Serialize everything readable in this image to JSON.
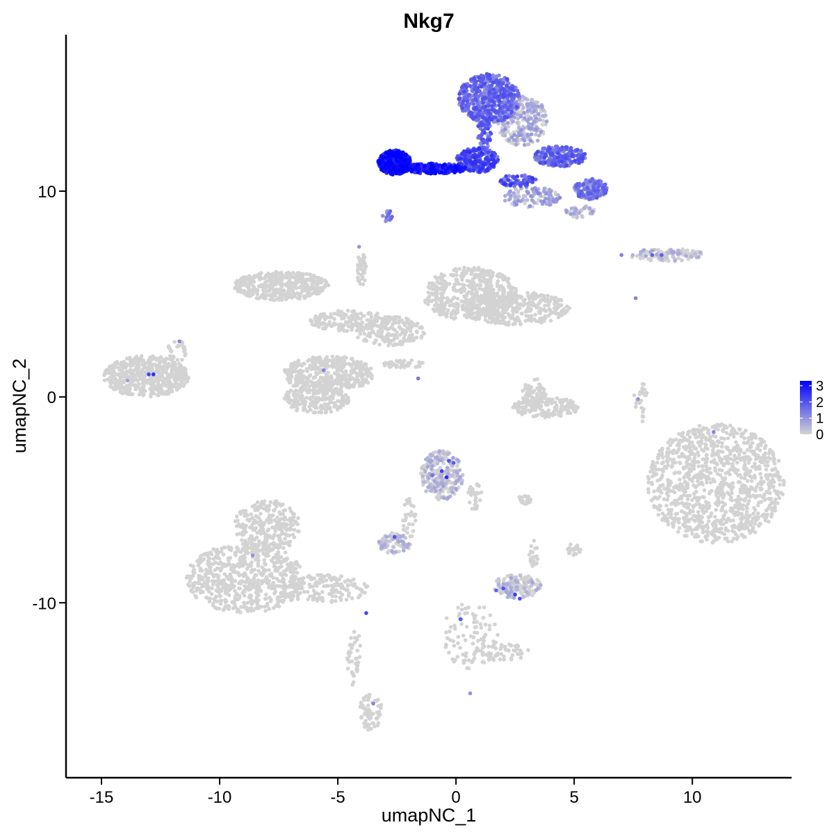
{
  "chart_data": {
    "type": "scatter",
    "title": "Nkg7",
    "xlabel": "umapNC_1",
    "ylabel": "umapNC_2",
    "xlim": [
      -16.5,
      14.2
    ],
    "ylim": [
      -18.5,
      17.6
    ],
    "xticks": [
      -15,
      -10,
      -5,
      0,
      5,
      10
    ],
    "xtick_labels": [
      "-15",
      "-10",
      "-5",
      "0",
      "5",
      "10"
    ],
    "yticks": [
      -10,
      0,
      10
    ],
    "ytick_labels": [
      "-10",
      "0",
      "10"
    ],
    "grid": false,
    "legend": {
      "placement": "right",
      "title": "",
      "ticks": [
        0,
        1,
        2,
        3
      ],
      "tick_labels": [
        "0",
        "1",
        "2",
        "3"
      ],
      "range": [
        0,
        3.3
      ],
      "color_low": "#d3d3d3",
      "color_high": "#0000ff"
    },
    "point_colors": {
      "low": "#d3d3d3",
      "high": "#0000ff"
    },
    "clusters": [
      {
        "cx": -13.1,
        "cy": 1.0,
        "rx": 1.8,
        "ry": 1.0,
        "n": 520,
        "expr": 0.0
      },
      {
        "cx": -11.8,
        "cy": 2.2,
        "rx": 0.4,
        "ry": 0.6,
        "n": 30,
        "expr": 0.0
      },
      {
        "cx": -7.4,
        "cy": 5.4,
        "rx": 2.0,
        "ry": 0.7,
        "n": 420,
        "expr": 0.0
      },
      {
        "cx": -5.4,
        "cy": 1.1,
        "rx": 1.9,
        "ry": 0.9,
        "n": 420,
        "expr": 0.0
      },
      {
        "cx": -5.9,
        "cy": -0.1,
        "rx": 1.4,
        "ry": 0.7,
        "n": 220,
        "expr": 0.0
      },
      {
        "cx": -4.5,
        "cy": 3.7,
        "rx": 1.7,
        "ry": 0.5,
        "n": 180,
        "expr": 0.0
      },
      {
        "cx": -2.8,
        "cy": 3.2,
        "rx": 1.5,
        "ry": 0.7,
        "n": 160,
        "expr": 0.0
      },
      {
        "cx": -4.0,
        "cy": 6.2,
        "rx": 0.2,
        "ry": 0.8,
        "n": 40,
        "expr": 0.0
      },
      {
        "cx": -2.2,
        "cy": 1.6,
        "rx": 0.9,
        "ry": 0.2,
        "n": 40,
        "expr": 0.0
      },
      {
        "cx": 0.6,
        "cy": 5.0,
        "rx": 2.0,
        "ry": 1.3,
        "n": 480,
        "expr": 0.0
      },
      {
        "cx": 2.5,
        "cy": 4.3,
        "rx": 2.3,
        "ry": 0.8,
        "n": 360,
        "expr": 0.0
      },
      {
        "cx": 3.3,
        "cy": 0.2,
        "rx": 0.5,
        "ry": 0.7,
        "n": 60,
        "expr": 0.0
      },
      {
        "cx": 3.8,
        "cy": -0.5,
        "rx": 1.4,
        "ry": 0.5,
        "n": 170,
        "expr": 0.0
      },
      {
        "cx": -0.6,
        "cy": -3.8,
        "rx": 0.9,
        "ry": 1.2,
        "n": 260,
        "expr": 0.05
      },
      {
        "cx": 0.8,
        "cy": -4.8,
        "rx": 0.3,
        "ry": 0.7,
        "n": 30,
        "expr": 0.0
      },
      {
        "cx": -2.0,
        "cy": -5.9,
        "rx": 0.3,
        "ry": 1.0,
        "n": 30,
        "expr": 0.0
      },
      {
        "cx": -2.6,
        "cy": -7.1,
        "rx": 0.7,
        "ry": 0.5,
        "n": 90,
        "expr": 0.03
      },
      {
        "cx": 2.6,
        "cy": -9.2,
        "rx": 1.0,
        "ry": 0.6,
        "n": 150,
        "expr": 0.05
      },
      {
        "cx": 3.3,
        "cy": -7.6,
        "rx": 0.2,
        "ry": 0.7,
        "n": 25,
        "expr": 0.0
      },
      {
        "cx": 0.6,
        "cy": -11.6,
        "rx": 1.2,
        "ry": 1.6,
        "n": 90,
        "expr": 0.0
      },
      {
        "cx": 1.9,
        "cy": -12.4,
        "rx": 1.3,
        "ry": 0.4,
        "n": 60,
        "expr": 0.0
      },
      {
        "cx": 5.0,
        "cy": -7.4,
        "rx": 0.3,
        "ry": 0.3,
        "n": 25,
        "expr": 0.0
      },
      {
        "cx": 2.9,
        "cy": -5.0,
        "rx": 0.3,
        "ry": 0.2,
        "n": 20,
        "expr": 0.0
      },
      {
        "cx": -8.9,
        "cy": -8.8,
        "rx": 2.5,
        "ry": 1.7,
        "n": 620,
        "expr": 0.0
      },
      {
        "cx": -8.0,
        "cy": -6.3,
        "rx": 1.4,
        "ry": 1.3,
        "n": 280,
        "expr": 0.0
      },
      {
        "cx": -5.5,
        "cy": -9.3,
        "rx": 1.8,
        "ry": 0.7,
        "n": 160,
        "expr": 0.0
      },
      {
        "cx": -4.3,
        "cy": -12.6,
        "rx": 0.3,
        "ry": 1.5,
        "n": 40,
        "expr": 0.0
      },
      {
        "cx": -3.6,
        "cy": -15.3,
        "rx": 0.5,
        "ry": 0.9,
        "n": 70,
        "expr": 0.0
      },
      {
        "cx": 11.0,
        "cy": -4.2,
        "rx": 2.9,
        "ry": 2.9,
        "n": 1100,
        "expr": 0.0
      },
      {
        "cx": 8.9,
        "cy": 6.9,
        "rx": 1.6,
        "ry": 0.3,
        "n": 110,
        "expr": 0.02
      },
      {
        "cx": 7.8,
        "cy": -0.2,
        "rx": 0.3,
        "ry": 1.2,
        "n": 25,
        "expr": 0.0
      },
      {
        "cx": 1.4,
        "cy": 14.5,
        "rx": 1.3,
        "ry": 1.2,
        "n": 550,
        "expr": 1.4
      },
      {
        "cx": 2.8,
        "cy": 13.4,
        "rx": 1.1,
        "ry": 1.2,
        "n": 260,
        "expr": 0.3
      },
      {
        "cx": -2.6,
        "cy": 11.4,
        "rx": 0.7,
        "ry": 0.6,
        "n": 380,
        "expr": 2.8
      },
      {
        "cx": -0.9,
        "cy": 11.1,
        "rx": 1.4,
        "ry": 0.25,
        "n": 260,
        "expr": 2.6
      },
      {
        "cx": 0.9,
        "cy": 11.5,
        "rx": 0.9,
        "ry": 0.6,
        "n": 240,
        "expr": 1.9
      },
      {
        "cx": 1.2,
        "cy": 12.8,
        "rx": 0.3,
        "ry": 0.8,
        "n": 60,
        "expr": 1.5
      },
      {
        "cx": 4.4,
        "cy": 11.7,
        "rx": 1.1,
        "ry": 0.5,
        "n": 240,
        "expr": 1.5
      },
      {
        "cx": 5.7,
        "cy": 10.1,
        "rx": 0.7,
        "ry": 0.5,
        "n": 170,
        "expr": 1.2
      },
      {
        "cx": 3.2,
        "cy": 9.7,
        "rx": 1.2,
        "ry": 0.5,
        "n": 110,
        "expr": 0.5
      },
      {
        "cx": 2.6,
        "cy": 10.5,
        "rx": 0.8,
        "ry": 0.3,
        "n": 60,
        "expr": 1.8
      },
      {
        "cx": -2.9,
        "cy": 8.8,
        "rx": 0.2,
        "ry": 0.3,
        "n": 15,
        "expr": 1.0
      },
      {
        "cx": 5.2,
        "cy": 9.0,
        "rx": 0.7,
        "ry": 0.3,
        "n": 40,
        "expr": 0.2
      }
    ],
    "highlighted_points": [
      {
        "x": -12.8,
        "y": 1.1,
        "v": 2.5
      },
      {
        "x": -13.0,
        "y": 1.1,
        "v": 2.2
      },
      {
        "x": -11.7,
        "y": 2.7,
        "v": 1.2
      },
      {
        "x": -13.9,
        "y": 0.8,
        "v": 0.8
      },
      {
        "x": -4.1,
        "y": 7.3,
        "v": 1.0
      },
      {
        "x": -1.6,
        "y": 0.9,
        "v": 1.5
      },
      {
        "x": -5.6,
        "y": 1.3,
        "v": 1.2
      },
      {
        "x": -0.3,
        "y": -3.1,
        "v": 2.0
      },
      {
        "x": -0.6,
        "y": -3.6,
        "v": 2.3
      },
      {
        "x": -0.4,
        "y": -3.9,
        "v": 2.6
      },
      {
        "x": -0.1,
        "y": -3.2,
        "v": 1.9
      },
      {
        "x": -1.0,
        "y": -3.8,
        "v": 1.5
      },
      {
        "x": -2.6,
        "y": -6.8,
        "v": 2.0
      },
      {
        "x": 2.0,
        "y": -9.3,
        "v": 2.0
      },
      {
        "x": 2.5,
        "y": -9.6,
        "v": 2.3
      },
      {
        "x": 2.7,
        "y": -9.8,
        "v": 2.1
      },
      {
        "x": 1.7,
        "y": -9.4,
        "v": 1.8
      },
      {
        "x": 0.2,
        "y": -10.8,
        "v": 2.0
      },
      {
        "x": -3.8,
        "y": -10.5,
        "v": 2.2
      },
      {
        "x": -3.5,
        "y": -14.9,
        "v": 1.2
      },
      {
        "x": -8.6,
        "y": -7.7,
        "v": 1.0
      },
      {
        "x": 8.3,
        "y": 6.9,
        "v": 1.8
      },
      {
        "x": 8.7,
        "y": 6.9,
        "v": 1.8
      },
      {
        "x": 7.0,
        "y": 6.9,
        "v": 1.3
      },
      {
        "x": 10.9,
        "y": -1.7,
        "v": 1.2
      },
      {
        "x": 7.7,
        "y": -0.1,
        "v": 1.0
      },
      {
        "x": 7.6,
        "y": 4.8,
        "v": 1.3
      },
      {
        "x": 0.6,
        "y": -14.4,
        "v": 1.0
      }
    ]
  }
}
